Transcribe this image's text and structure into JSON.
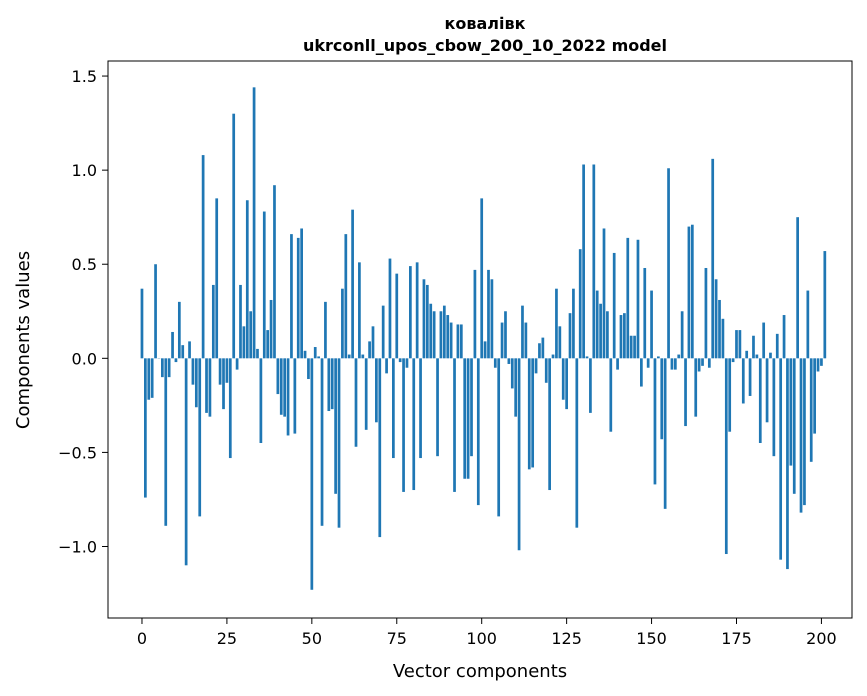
{
  "chart_data": {
    "type": "bar",
    "title_line1": "ковалівк",
    "title_line2": "ukrconll_upos_cbow_200_10_2022 model",
    "xlabel": "Vector components",
    "ylabel": "Components values",
    "xlim": [
      -10,
      209
    ],
    "ylim": [
      -1.38,
      1.58
    ],
    "xticks": [
      0,
      25,
      50,
      75,
      100,
      125,
      150,
      175,
      200
    ],
    "yticks": [
      -1.0,
      -0.5,
      0.0,
      0.5,
      1.0,
      1.5
    ],
    "ytick_labels": [
      "−1.0",
      "−0.5",
      "0.0",
      "0.5",
      "1.0",
      "1.5"
    ],
    "bar_color": "#1f77b4",
    "grid": false,
    "values": [
      0.37,
      -0.74,
      -0.22,
      -0.21,
      0.5,
      0.0,
      -0.1,
      -0.89,
      -0.1,
      0.14,
      -0.02,
      0.3,
      0.07,
      -1.1,
      0.09,
      -0.14,
      -0.26,
      -0.84,
      1.08,
      -0.29,
      -0.31,
      0.39,
      0.85,
      -0.14,
      -0.27,
      -0.13,
      -0.53,
      1.3,
      -0.06,
      0.39,
      0.17,
      0.84,
      0.25,
      1.44,
      0.05,
      -0.45,
      0.78,
      0.15,
      0.31,
      0.92,
      -0.19,
      -0.3,
      -0.31,
      -0.41,
      0.66,
      -0.4,
      0.64,
      0.69,
      0.04,
      -0.11,
      -1.23,
      0.06,
      0.01,
      -0.89,
      0.3,
      -0.28,
      -0.27,
      -0.72,
      -0.9,
      0.37,
      0.66,
      0.02,
      0.79,
      -0.47,
      0.51,
      0.02,
      -0.38,
      0.09,
      0.17,
      -0.34,
      -0.95,
      0.28,
      -0.08,
      0.53,
      -0.53,
      0.45,
      -0.02,
      -0.71,
      -0.05,
      0.49,
      -0.7,
      0.51,
      -0.53,
      0.42,
      0.39,
      0.29,
      0.25,
      -0.52,
      0.25,
      0.28,
      0.23,
      0.19,
      -0.71,
      0.18,
      0.18,
      -0.64,
      -0.64,
      -0.52,
      0.47,
      -0.78,
      0.85,
      0.09,
      0.47,
      0.42,
      -0.05,
      -0.84,
      0.19,
      0.25,
      -0.03,
      -0.16,
      -0.31,
      -1.02,
      0.28,
      0.19,
      -0.59,
      -0.58,
      -0.08,
      0.08,
      0.11,
      -0.13,
      -0.7,
      0.02,
      0.37,
      0.17,
      -0.22,
      -0.27,
      0.24,
      0.37,
      -0.9,
      0.58,
      1.03,
      0.01,
      -0.29,
      1.03,
      0.36,
      0.29,
      0.69,
      0.25,
      -0.39,
      0.56,
      -0.06,
      0.23,
      0.24,
      0.64,
      0.12,
      0.12,
      0.63,
      -0.15,
      0.48,
      -0.05,
      0.36,
      -0.67,
      0.01,
      -0.43,
      -0.8,
      1.01,
      -0.06,
      -0.06,
      0.02,
      0.25,
      -0.36,
      0.7,
      0.71,
      -0.31,
      -0.07,
      -0.04,
      0.48,
      -0.05,
      1.06,
      0.42,
      0.31,
      0.21,
      -1.04,
      -0.39,
      -0.02,
      0.15,
      0.15,
      -0.24,
      0.04,
      -0.2,
      0.12,
      0.02,
      -0.45,
      0.19,
      -0.34,
      0.03,
      -0.52,
      0.13,
      -1.07,
      0.23,
      -1.12,
      -0.57,
      -0.72,
      0.75,
      -0.82,
      -0.78,
      0.36,
      -0.55,
      -0.4,
      -0.07,
      -0.04,
      0.57
    ]
  }
}
